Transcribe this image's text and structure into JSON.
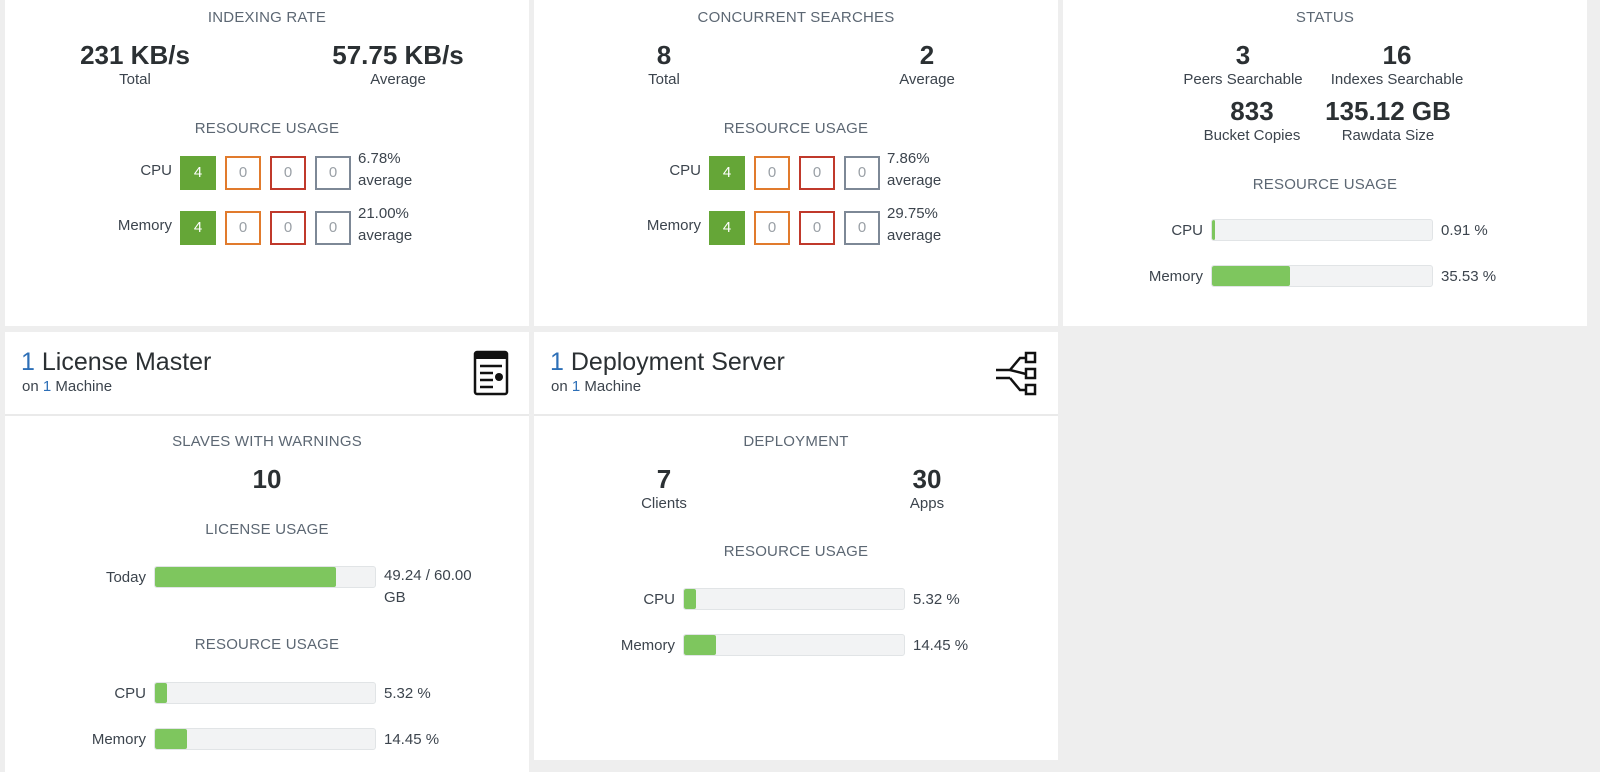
{
  "indexing": {
    "title": "INDEXING RATE",
    "total_value": "231 KB/s",
    "total_label": "Total",
    "avg_value": "57.75 KB/s",
    "avg_label": "Average",
    "resource_title": "RESOURCE USAGE",
    "cpu_label": "CPU",
    "cpu_counts": [
      "4",
      "0",
      "0",
      "0"
    ],
    "cpu_avg_pct": "6.78%",
    "cpu_avg_word": "average",
    "mem_label": "Memory",
    "mem_counts": [
      "4",
      "0",
      "0",
      "0"
    ],
    "mem_avg_pct": "21.00%",
    "mem_avg_word": "average"
  },
  "searches": {
    "title": "CONCURRENT SEARCHES",
    "total_value": "8",
    "total_label": "Total",
    "avg_value": "2",
    "avg_label": "Average",
    "resource_title": "RESOURCE USAGE",
    "cpu_label": "CPU",
    "cpu_counts": [
      "4",
      "0",
      "0",
      "0"
    ],
    "cpu_avg_pct": "7.86%",
    "cpu_avg_word": "average",
    "mem_label": "Memory",
    "mem_counts": [
      "4",
      "0",
      "0",
      "0"
    ],
    "mem_avg_pct": "29.75%",
    "mem_avg_word": "average"
  },
  "status": {
    "title": "STATUS",
    "peers_value": "3",
    "peers_label": "Peers Searchable",
    "indexes_value": "16",
    "indexes_label": "Indexes Searchable",
    "buckets_value": "833",
    "buckets_label": "Bucket Copies",
    "rawdata_value": "135.12 GB",
    "rawdata_label": "Rawdata Size",
    "resource_title": "RESOURCE USAGE",
    "cpu_label": "CPU",
    "cpu_text": "0.91 %",
    "cpu_fraction": 0.0091,
    "mem_label": "Memory",
    "mem_text": "35.53 %",
    "mem_fraction": 0.3553
  },
  "license": {
    "count": "1",
    "title": "License Master",
    "sub_prefix": "on",
    "sub_count": "1",
    "sub_suffix": "Machine",
    "icon": "license-document-icon",
    "warnings_title": "SLAVES WITH WARNINGS",
    "warnings_value": "10",
    "usage_title": "LICENSE USAGE",
    "today_label": "Today",
    "today_text_1": "49.24 / 60.00",
    "today_text_2": "GB",
    "today_fraction": 0.8207,
    "resource_title": "RESOURCE USAGE",
    "cpu_label": "CPU",
    "cpu_text": "5.32 %",
    "cpu_fraction": 0.0532,
    "mem_label": "Memory",
    "mem_text": "14.45 %",
    "mem_fraction": 0.1445
  },
  "deployment": {
    "count": "1",
    "title": "Deployment Server",
    "sub_prefix": "on",
    "sub_count": "1",
    "sub_suffix": "Machine",
    "icon": "deployment-tree-icon",
    "section_title": "DEPLOYMENT",
    "clients_value": "7",
    "clients_label": "Clients",
    "apps_value": "30",
    "apps_label": "Apps",
    "resource_title": "RESOURCE USAGE",
    "cpu_label": "CPU",
    "cpu_text": "5.32 %",
    "cpu_fraction": 0.0532,
    "mem_label": "Memory",
    "mem_text": "14.45 %",
    "mem_fraction": 0.1445
  }
}
